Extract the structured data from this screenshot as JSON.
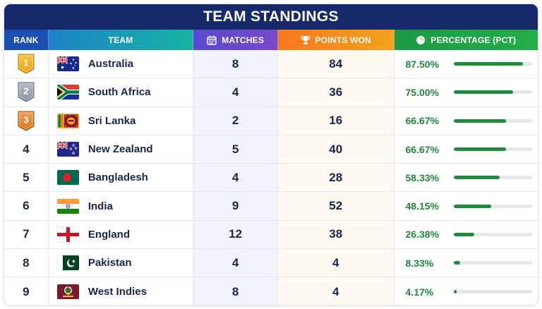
{
  "title": "TEAM STANDINGS",
  "headers": {
    "rank": "RANK",
    "team": "TEAM",
    "matches": "MATCHES",
    "points": "POINTS WON",
    "pct": "PERCENTAGE (PCT)"
  },
  "header_icons": {
    "matches": "calendar-icon",
    "points": "trophy-icon",
    "pct": "pie-chart-icon"
  },
  "colors": {
    "title_bg": "#15296b",
    "gold": "#e8a317",
    "silver": "#8a94a6",
    "bronze": "#d9731d",
    "pct_green": "#1f8a3a"
  },
  "rows": [
    {
      "rank": "1",
      "medal": "gold",
      "flag": "australia-flag",
      "team": "Australia",
      "matches": "8",
      "points": "84",
      "pct": "87.50%",
      "pct_value": 87.5
    },
    {
      "rank": "2",
      "medal": "silver",
      "flag": "south-africa-flag",
      "team": "South Africa",
      "matches": "4",
      "points": "36",
      "pct": "75.00%",
      "pct_value": 75.0
    },
    {
      "rank": "3",
      "medal": "bronze",
      "flag": "sri-lanka-flag",
      "team": "Sri Lanka",
      "matches": "2",
      "points": "16",
      "pct": "66.67%",
      "pct_value": 66.67
    },
    {
      "rank": "4",
      "medal": "",
      "flag": "new-zealand-flag",
      "team": "New Zealand",
      "matches": "5",
      "points": "40",
      "pct": "66.67%",
      "pct_value": 66.67
    },
    {
      "rank": "5",
      "medal": "",
      "flag": "bangladesh-flag",
      "team": "Bangladesh",
      "matches": "4",
      "points": "28",
      "pct": "58.33%",
      "pct_value": 58.33
    },
    {
      "rank": "6",
      "medal": "",
      "flag": "india-flag",
      "team": "India",
      "matches": "9",
      "points": "52",
      "pct": "48.15%",
      "pct_value": 48.15
    },
    {
      "rank": "7",
      "medal": "",
      "flag": "england-flag",
      "team": "England",
      "matches": "12",
      "points": "38",
      "pct": "26.38%",
      "pct_value": 26.38
    },
    {
      "rank": "8",
      "medal": "",
      "flag": "pakistan-flag",
      "team": "Pakistan",
      "matches": "4",
      "points": "4",
      "pct": "8.33%",
      "pct_value": 8.33
    },
    {
      "rank": "9",
      "medal": "",
      "flag": "west-indies-flag",
      "team": "West Indies",
      "matches": "8",
      "points": "4",
      "pct": "4.17%",
      "pct_value": 4.17
    }
  ]
}
